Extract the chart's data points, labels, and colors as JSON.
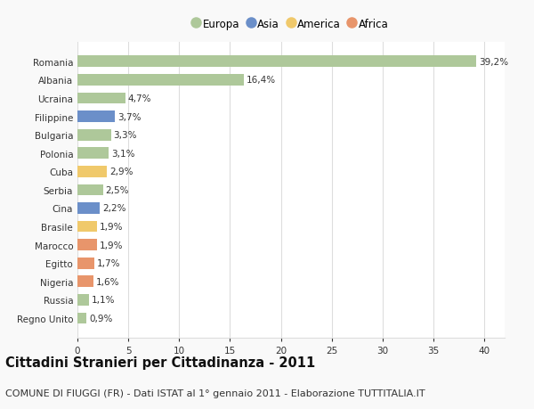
{
  "categories": [
    "Romania",
    "Albania",
    "Ucraina",
    "Filippine",
    "Bulgaria",
    "Polonia",
    "Cuba",
    "Serbia",
    "Cina",
    "Brasile",
    "Marocco",
    "Egitto",
    "Nigeria",
    "Russia",
    "Regno Unito"
  ],
  "values": [
    39.2,
    16.4,
    4.7,
    3.7,
    3.3,
    3.1,
    2.9,
    2.5,
    2.2,
    1.9,
    1.9,
    1.7,
    1.6,
    1.1,
    0.9
  ],
  "labels": [
    "39,2%",
    "16,4%",
    "4,7%",
    "3,7%",
    "3,3%",
    "3,1%",
    "2,9%",
    "2,5%",
    "2,2%",
    "1,9%",
    "1,9%",
    "1,7%",
    "1,6%",
    "1,1%",
    "0,9%"
  ],
  "continents": [
    "Europa",
    "Europa",
    "Europa",
    "Asia",
    "Europa",
    "Europa",
    "America",
    "Europa",
    "Asia",
    "America",
    "Africa",
    "Africa",
    "Africa",
    "Europa",
    "Europa"
  ],
  "continent_colors": {
    "Europa": "#aec89a",
    "Asia": "#6b8fc9",
    "America": "#f0c96b",
    "Africa": "#e8956b"
  },
  "legend_order": [
    "Europa",
    "Asia",
    "America",
    "Africa"
  ],
  "title": "Cittadini Stranieri per Cittadinanza - 2011",
  "subtitle": "COMUNE DI FIUGGI (FR) - Dati ISTAT al 1° gennaio 2011 - Elaborazione TUTTITALIA.IT",
  "xlim": [
    0,
    42
  ],
  "xticks": [
    0,
    5,
    10,
    15,
    20,
    25,
    30,
    35,
    40
  ],
  "background_color": "#f9f9f9",
  "plot_background": "#ffffff",
  "grid_color": "#dddddd",
  "title_fontsize": 10.5,
  "subtitle_fontsize": 8,
  "label_fontsize": 7.5,
  "tick_fontsize": 7.5,
  "legend_fontsize": 8.5
}
